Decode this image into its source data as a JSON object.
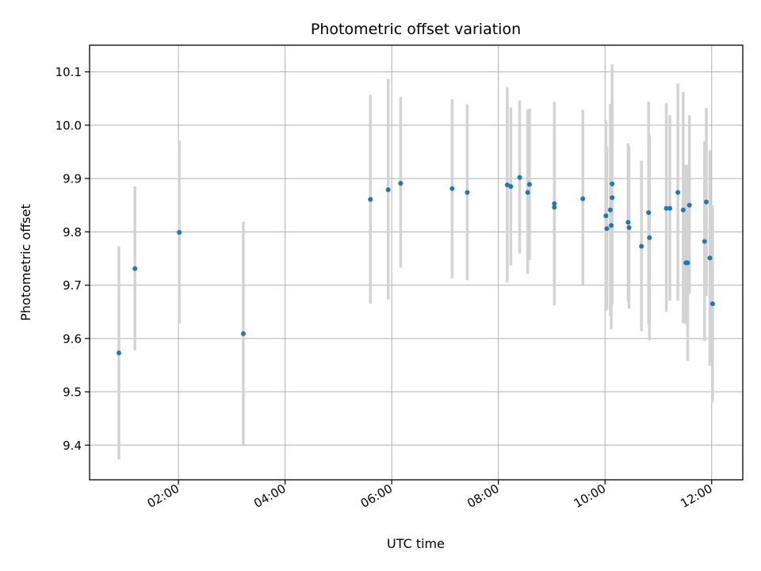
{
  "chart_data": {
    "type": "scatter",
    "title": "Photometric offset variation",
    "xlabel": "UTC time",
    "ylabel": "Photometric offset",
    "xlim": [
      "00:20",
      "12:35"
    ],
    "ylim": [
      9.335,
      10.15
    ],
    "x_ticks": [
      "02:00",
      "04:00",
      "06:00",
      "08:00",
      "10:00",
      "12:00"
    ],
    "y_ticks": [
      9.4,
      9.5,
      9.6,
      9.7,
      9.8,
      9.9,
      10.0,
      10.1
    ],
    "grid": true,
    "colors": {
      "point": "#1f77b4",
      "errorbar": "#d3d3d3",
      "grid": "#b0b0b0"
    },
    "points": [
      {
        "t": "00:53",
        "y": 9.573,
        "lo": 9.373,
        "hi": 9.773
      },
      {
        "t": "01:11",
        "y": 9.731,
        "lo": 9.578,
        "hi": 9.885
      },
      {
        "t": "02:01",
        "y": 9.799,
        "lo": 9.628,
        "hi": 9.971
      },
      {
        "t": "03:13",
        "y": 9.609,
        "lo": 9.401,
        "hi": 9.819
      },
      {
        "t": "05:36",
        "y": 9.861,
        "lo": 9.665,
        "hi": 10.057
      },
      {
        "t": "05:56",
        "y": 9.879,
        "lo": 9.673,
        "hi": 10.087
      },
      {
        "t": "06:10",
        "y": 9.891,
        "lo": 9.733,
        "hi": 10.053
      },
      {
        "t": "07:08",
        "y": 9.881,
        "lo": 9.713,
        "hi": 10.049
      },
      {
        "t": "07:25",
        "y": 9.874,
        "lo": 9.709,
        "hi": 10.039
      },
      {
        "t": "08:10",
        "y": 9.888,
        "lo": 9.705,
        "hi": 10.071
      },
      {
        "t": "08:14",
        "y": 9.885,
        "lo": 9.737,
        "hi": 10.033
      },
      {
        "t": "08:24",
        "y": 9.902,
        "lo": 9.759,
        "hi": 10.046
      },
      {
        "t": "08:33",
        "y": 9.874,
        "lo": 9.721,
        "hi": 10.029
      },
      {
        "t": "08:35",
        "y": 9.889,
        "lo": 9.747,
        "hi": 10.031
      },
      {
        "t": "09:03",
        "y": 9.853,
        "lo": 9.662,
        "hi": 10.044
      },
      {
        "t": "09:03",
        "y": 9.846,
        "lo": 9.705,
        "hi": 9.99
      },
      {
        "t": "09:35",
        "y": 9.862,
        "lo": 9.701,
        "hi": 10.029
      },
      {
        "t": "10:01",
        "y": 9.83,
        "lo": 9.652,
        "hi": 10.009
      },
      {
        "t": "10:02",
        "y": 9.806,
        "lo": 9.655,
        "hi": 9.96
      },
      {
        "t": "10:06",
        "y": 9.841,
        "lo": 9.643,
        "hi": 10.04
      },
      {
        "t": "10:07",
        "y": 9.812,
        "lo": 9.617,
        "hi": 10.007
      },
      {
        "t": "10:08",
        "y": 9.864,
        "lo": 9.714,
        "hi": 10.015
      },
      {
        "t": "10:08",
        "y": 9.89,
        "lo": 9.664,
        "hi": 10.114
      },
      {
        "t": "10:26",
        "y": 9.818,
        "lo": 9.67,
        "hi": 9.966
      },
      {
        "t": "10:27",
        "y": 9.808,
        "lo": 9.656,
        "hi": 9.96
      },
      {
        "t": "10:41",
        "y": 9.773,
        "lo": 9.614,
        "hi": 9.933
      },
      {
        "t": "10:49",
        "y": 9.836,
        "lo": 9.627,
        "hi": 10.044
      },
      {
        "t": "10:50",
        "y": 9.789,
        "lo": 9.596,
        "hi": 9.983
      },
      {
        "t": "11:09",
        "y": 9.844,
        "lo": 9.65,
        "hi": 10.041
      },
      {
        "t": "11:13",
        "y": 9.844,
        "lo": 9.671,
        "hi": 10.019
      },
      {
        "t": "11:22",
        "y": 9.874,
        "lo": 9.671,
        "hi": 10.078
      },
      {
        "t": "11:28",
        "y": 9.841,
        "lo": 9.629,
        "hi": 10.062
      },
      {
        "t": "11:31",
        "y": 9.742,
        "lo": 9.627,
        "hi": 9.925
      },
      {
        "t": "11:33",
        "y": 9.742,
        "lo": 9.558,
        "hi": 9.926
      },
      {
        "t": "11:35",
        "y": 9.85,
        "lo": 9.684,
        "hi": 10.018
      },
      {
        "t": "11:52",
        "y": 9.782,
        "lo": 9.595,
        "hi": 9.97
      },
      {
        "t": "11:54",
        "y": 9.856,
        "lo": 9.68,
        "hi": 10.032
      },
      {
        "t": "11:58",
        "y": 9.751,
        "lo": 9.549,
        "hi": 9.953
      },
      {
        "t": "12:01",
        "y": 9.665,
        "lo": 9.48,
        "hi": 9.85
      }
    ]
  }
}
